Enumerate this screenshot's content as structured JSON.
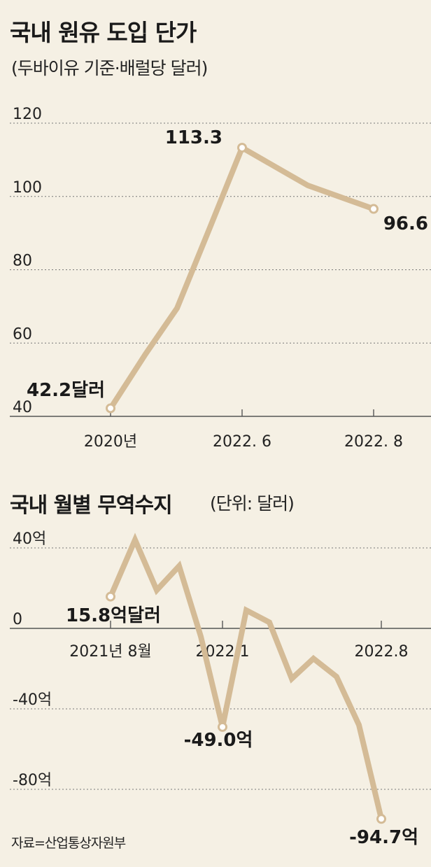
{
  "header": {
    "title": "국내 원유 도입 단가",
    "subtitle": "(두바이유 기준·배럴당 달러)"
  },
  "section2": {
    "title": "국내 월별 무역수지",
    "unit": "(단위: 달러)"
  },
  "source": "자료=산업통상자원부",
  "line_color": "#d4bb96",
  "chart_data": [
    {
      "type": "line",
      "title": "국내 원유 도입 단가",
      "subtitle": "(두바이유 기준·배럴당 달러)",
      "ylim": [
        40,
        120
      ],
      "y_ticks": [
        {
          "value": 120,
          "label": "120"
        },
        {
          "value": 100,
          "label": "100"
        },
        {
          "value": 80,
          "label": "80"
        },
        {
          "value": 60,
          "label": "60"
        },
        {
          "value": 40,
          "label": "40"
        }
      ],
      "x_ticks": [
        "2020년",
        "2022. 6",
        "2022. 8"
      ],
      "x_tick_index": [
        0,
        4,
        6
      ],
      "grid": true,
      "series": [
        {
          "values": [
            42.2,
            57,
            69.5,
            91.5,
            113.3,
            103,
            96.6
          ]
        }
      ],
      "data_labels": [
        {
          "index": 0,
          "text": "42.2달러"
        },
        {
          "index": 4,
          "text": "113.3"
        },
        {
          "index": 6,
          "text": "96.6"
        }
      ]
    },
    {
      "type": "line",
      "title": "국내 월별 무역수지",
      "unit": "(단위: 달러)",
      "ylim": [
        -100,
        40
      ],
      "y_ticks": [
        {
          "value": 40,
          "label": "40억"
        },
        {
          "value": 0,
          "label": "0"
        },
        {
          "value": -40,
          "label": "-40억"
        },
        {
          "value": -80,
          "label": "-80억"
        }
      ],
      "x_ticks": [
        "2021년 8월",
        "2022.1",
        "2022.8"
      ],
      "x_tick_index": [
        0,
        5,
        12
      ],
      "grid": true,
      "series": [
        {
          "values": [
            15.8,
            44,
            19,
            31,
            -4,
            -49.0,
            9,
            3,
            -25,
            -15,
            -24,
            -48,
            -94.7
          ]
        }
      ],
      "data_labels": [
        {
          "index": 0,
          "text": "15.8억달러"
        },
        {
          "index": 5,
          "text": "-49.0억"
        },
        {
          "index": 12,
          "text": "-94.7억"
        }
      ]
    }
  ]
}
